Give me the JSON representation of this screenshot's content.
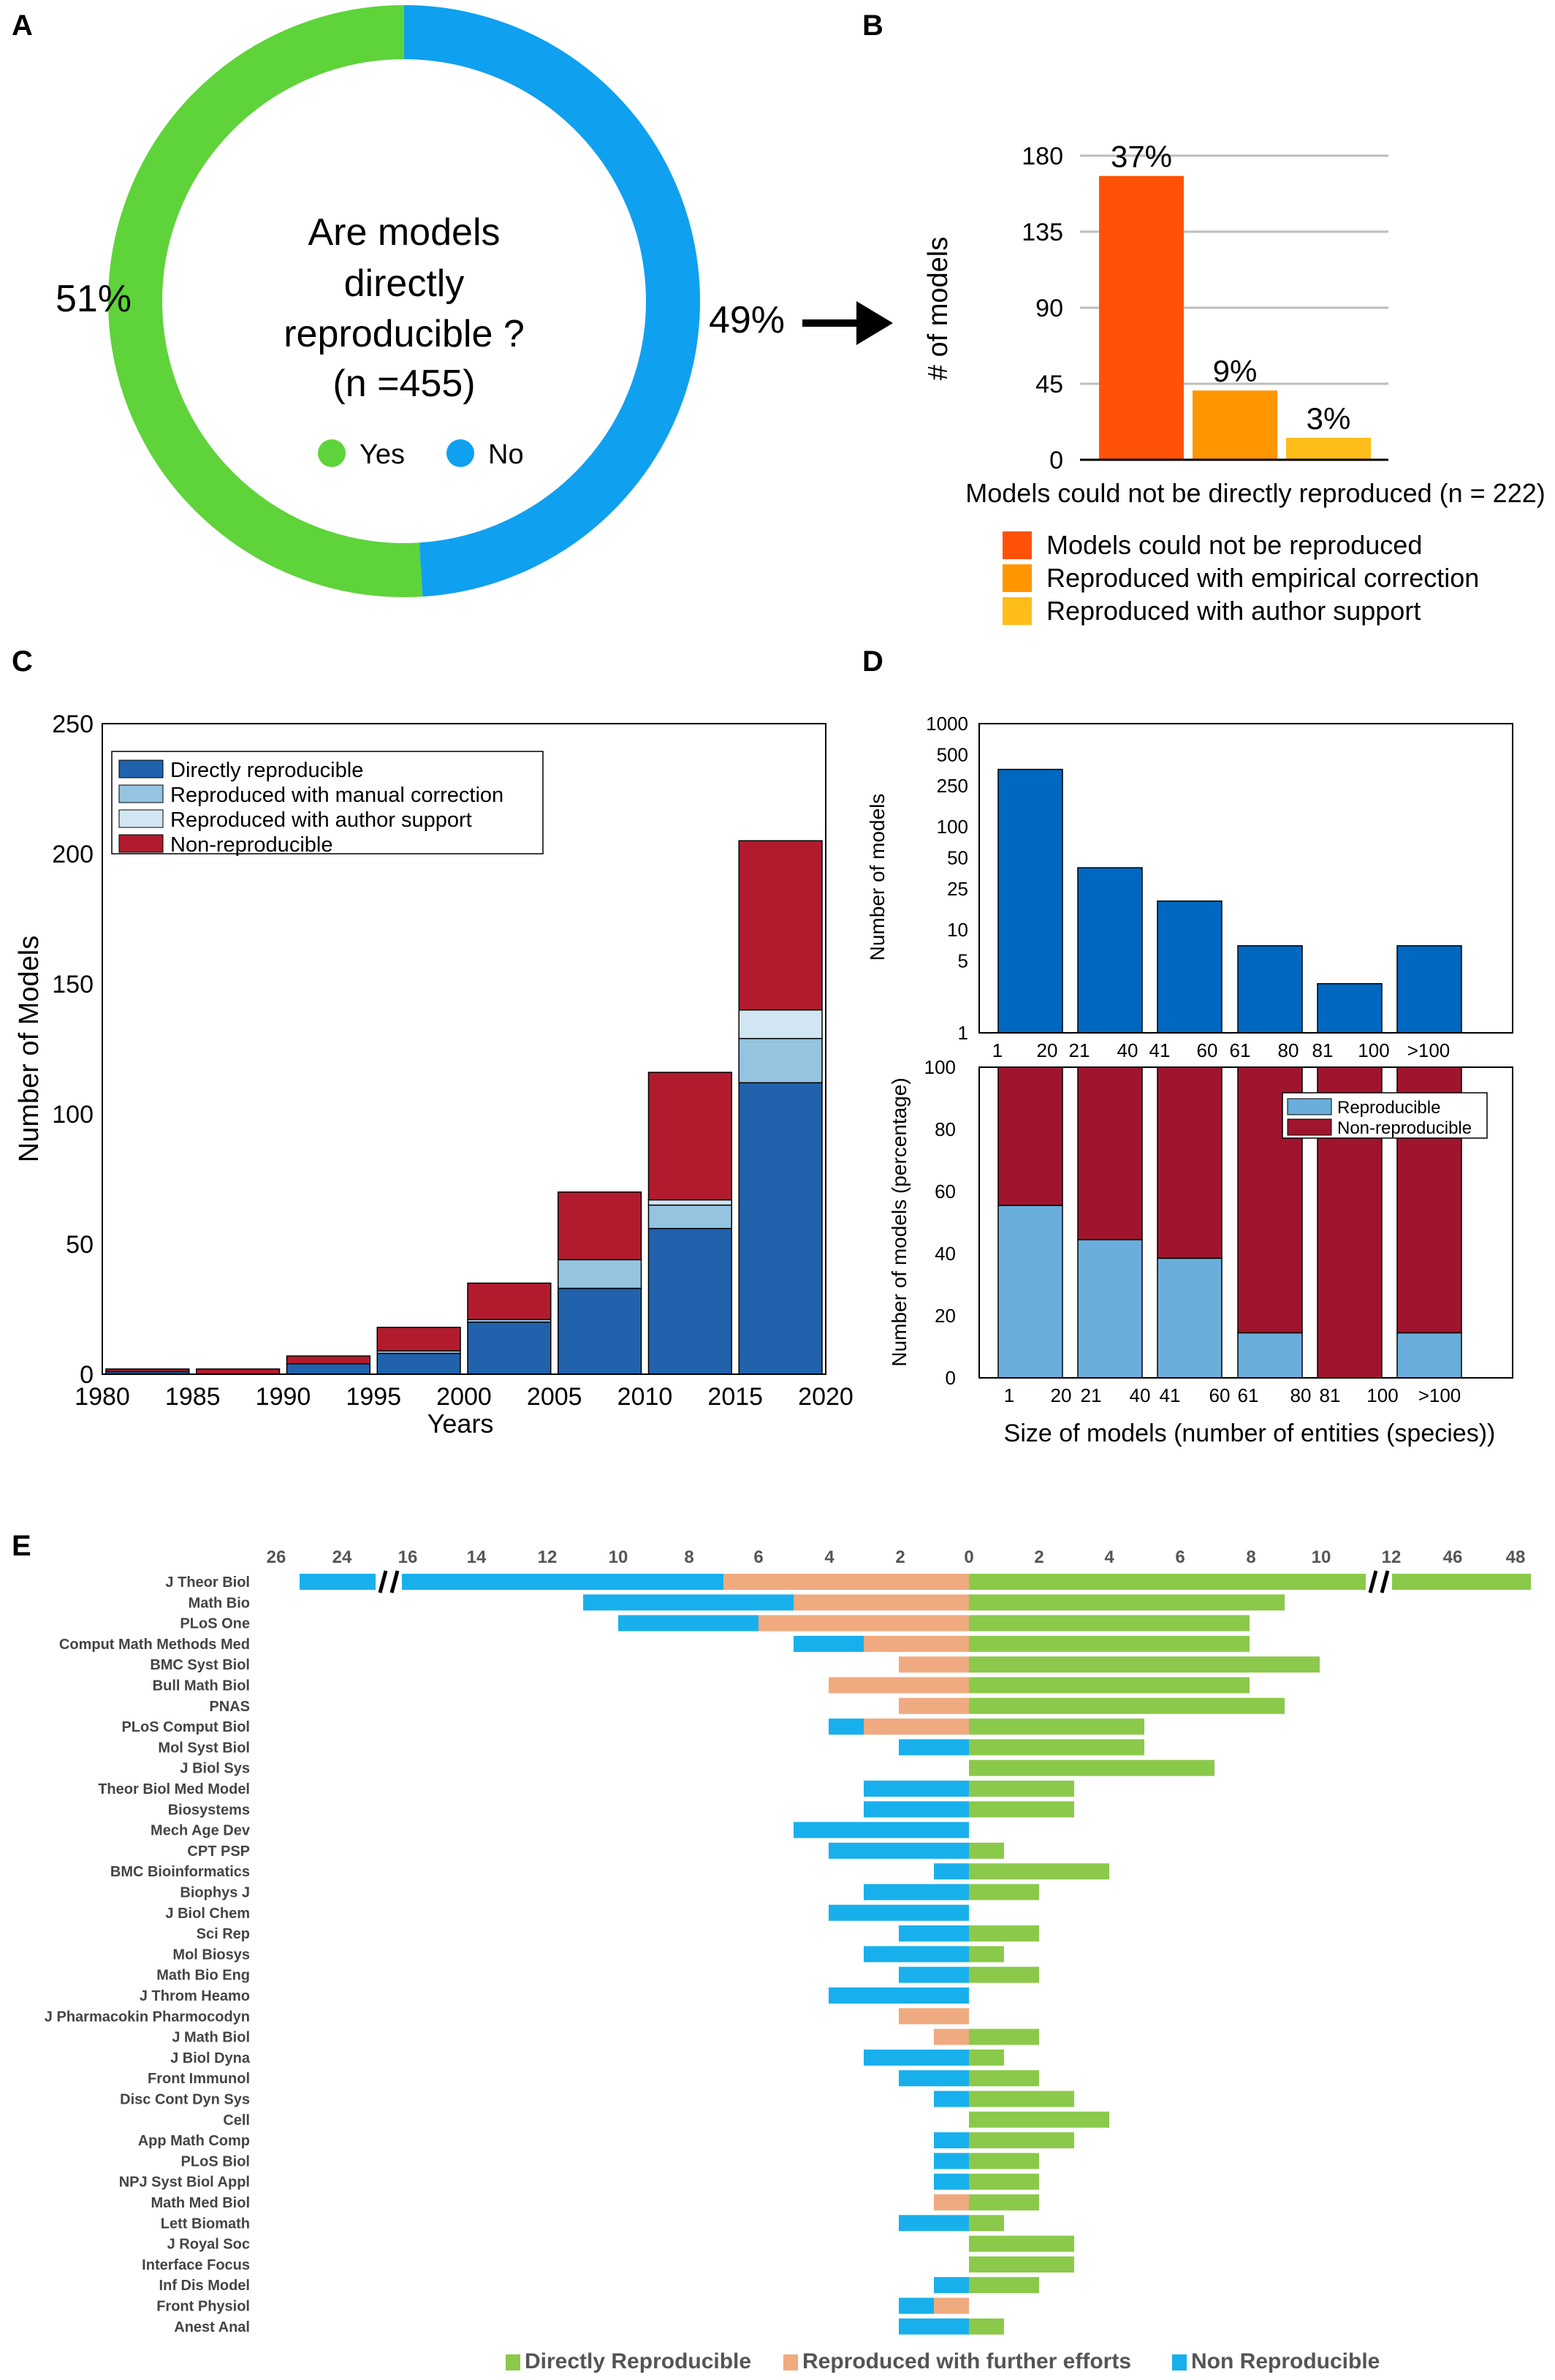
{
  "panel_letters": [
    "A",
    "B",
    "C",
    "D",
    "E"
  ],
  "colors": {
    "yes": "#5fd33a",
    "no": "#0fa0f0",
    "b_bars": [
      "#ff5208",
      "#ff9600",
      "#ffbd1a"
    ],
    "c_series": [
      "#2162ad",
      "#94c4e0",
      "#d2e5f2",
      "#b21b2e"
    ],
    "d_top": "#0068c0",
    "d_rep": "#69aedb",
    "d_nonrep": "#a0152d",
    "e_green": "#8bc94a",
    "e_orange": "#f0aa80",
    "e_blue": "#18b0ec",
    "grid": "#bdbdbd"
  },
  "chart_data": [
    {
      "panel": "A",
      "type": "pie",
      "title_lines": [
        "Are models",
        "directly",
        "reproducible ?",
        "(n =455)"
      ],
      "slices": [
        {
          "label": "Yes",
          "value": 51,
          "display": "51%"
        },
        {
          "label": "No",
          "value": 49,
          "display": "49%"
        }
      ]
    },
    {
      "panel": "B",
      "type": "bar",
      "ylabel": "# of models",
      "xlabel": "Models could not be directly reproduced (n = 222)",
      "ylim": [
        0,
        180
      ],
      "yticks": [
        0,
        45,
        90,
        135,
        180
      ],
      "grid": true,
      "categories": [
        "Models could not be reproduced",
        "Reproduced with empirical correction",
        "Reproduced with author support"
      ],
      "values": [
        168,
        41,
        13
      ],
      "data_labels": [
        "37%",
        "9%",
        "3%"
      ],
      "legend": [
        "Models could not be reproduced",
        "Reproduced with empirical correction",
        "Reproduced with author support"
      ],
      "legend_position": "below"
    },
    {
      "panel": "C",
      "type": "bar",
      "stacked": true,
      "xlabel": "Years",
      "ylabel": "Number of Models",
      "xlim": [
        1980,
        2020
      ],
      "ylim": [
        0,
        250
      ],
      "xticks": [
        "1980",
        "1985",
        "1990",
        "1995",
        "2000",
        "2005",
        "2010",
        "2015",
        "2020"
      ],
      "yticks": [
        "0",
        "50",
        "100",
        "150",
        "200",
        "250"
      ],
      "bin_edges": [
        1980,
        1985,
        1990,
        1995,
        2000,
        2005,
        2010,
        2015,
        2020
      ],
      "legend_position": "top-left",
      "series": [
        {
          "name": "Directly reproducible",
          "values": [
            1,
            0,
            4,
            8,
            20,
            33,
            56,
            112
          ]
        },
        {
          "name": "Reproduced with manual correction",
          "values": [
            0,
            0,
            0,
            1,
            1,
            11,
            9,
            17
          ]
        },
        {
          "name": "Reproduced with author support",
          "values": [
            0,
            0,
            0,
            0,
            0,
            0,
            2,
            11
          ]
        },
        {
          "name": "Non-reproducible",
          "values": [
            1,
            2,
            3,
            9,
            14,
            26,
            49,
            65
          ]
        }
      ]
    },
    {
      "panel": "D-top",
      "type": "bar",
      "ylabel": "Number of models",
      "yscale": "log",
      "ylim": [
        1,
        1000
      ],
      "yticks": [
        "1",
        "5",
        "10",
        "25",
        "50",
        "100",
        "250",
        "500",
        "1000"
      ],
      "categories": [
        "1 - 20",
        "21 - 40",
        "41 - 60",
        "61 - 80",
        "81 - 100",
        ">100"
      ],
      "values": [
        360,
        40,
        19,
        7,
        3,
        7
      ]
    },
    {
      "panel": "D-bottom",
      "type": "bar",
      "stacked": true,
      "ylabel": "Number of models (percentage)",
      "xlabel": "Size of models (number of entities (species))",
      "ylim": [
        0,
        100
      ],
      "yticks": [
        "0",
        "20",
        "40",
        "60",
        "80",
        "100"
      ],
      "categories": [
        "1 - 20",
        "21 - 40",
        "41 - 60",
        "61 - 80",
        "81 - 100",
        ">100"
      ],
      "tick_labels": [
        "1",
        "20",
        "21",
        "40",
        "41",
        "60",
        "61",
        "80",
        "81",
        "100",
        ">100"
      ],
      "legend_position": "top-right",
      "series": [
        {
          "name": "Reproducible",
          "values": [
            55.5,
            44.5,
            38.5,
            14.5,
            0,
            14.5
          ]
        },
        {
          "name": "Non-reproducible",
          "values": [
            44.5,
            55.5,
            61.5,
            85.5,
            100,
            85.5
          ]
        }
      ]
    },
    {
      "panel": "E",
      "type": "bar",
      "orientation": "horizontal",
      "axis_ticks_left": [
        "26",
        "24",
        "16",
        "14",
        "12",
        "10",
        "8",
        "6",
        "4",
        "2",
        "0"
      ],
      "axis_ticks_right": [
        "2",
        "4",
        "6",
        "8",
        "10",
        "12",
        "46",
        "48"
      ],
      "axis_break": true,
      "legend": [
        "Directly Reproducible",
        "Reproduced with further efforts",
        "Non Reproducible"
      ],
      "legend_position": "bottom",
      "rows": [
        {
          "journal": "J Theor Biol",
          "non_reproducible": 26,
          "further_efforts": 7,
          "directly": 48
        },
        {
          "journal": "Math Bio",
          "non_reproducible": 11,
          "further_efforts": 5,
          "directly": 9
        },
        {
          "journal": "PLoS One",
          "non_reproducible": 10,
          "further_efforts": 6,
          "directly": 8
        },
        {
          "journal": "Comput Math Methods Med",
          "non_reproducible": 5,
          "further_efforts": 3,
          "directly": 8
        },
        {
          "journal": "BMC Syst Biol",
          "non_reproducible": 2,
          "further_efforts": 2,
          "directly": 10
        },
        {
          "journal": "Bull Math Biol",
          "non_reproducible": 1,
          "further_efforts": 4,
          "directly": 8
        },
        {
          "journal": "PNAS",
          "non_reproducible": 1,
          "further_efforts": 2,
          "directly": 9
        },
        {
          "journal": "PLoS Comput Biol",
          "non_reproducible": 4,
          "further_efforts": 3,
          "directly": 5
        },
        {
          "journal": "Mol Syst Biol",
          "non_reproducible": 2,
          "further_efforts": 0,
          "directly": 5
        },
        {
          "journal": "J Biol Sys",
          "non_reproducible": 0,
          "further_efforts": 0,
          "directly": 7
        },
        {
          "journal": "Theor Biol Med Model",
          "non_reproducible": 3,
          "further_efforts": 0,
          "directly": 3
        },
        {
          "journal": "Biosystems",
          "non_reproducible": 3,
          "further_efforts": 0,
          "directly": 3
        },
        {
          "journal": "Mech Age Dev",
          "non_reproducible": 5,
          "further_efforts": 0,
          "directly": 0
        },
        {
          "journal": "CPT PSP",
          "non_reproducible": 4,
          "further_efforts": 0,
          "directly": 1
        },
        {
          "journal": "BMC Bioinformatics",
          "non_reproducible": 1,
          "further_efforts": 0,
          "directly": 4
        },
        {
          "journal": "Biophys J",
          "non_reproducible": 3,
          "further_efforts": 0,
          "directly": 2
        },
        {
          "journal": "J Biol Chem",
          "non_reproducible": 4,
          "further_efforts": 0,
          "directly": 0
        },
        {
          "journal": "Sci Rep",
          "non_reproducible": 2,
          "further_efforts": 0,
          "directly": 2
        },
        {
          "journal": "Mol Biosys",
          "non_reproducible": 3,
          "further_efforts": 0,
          "directly": 1
        },
        {
          "journal": "Math Bio Eng",
          "non_reproducible": 2,
          "further_efforts": 0,
          "directly": 2
        },
        {
          "journal": "J Throm Heamo",
          "non_reproducible": 4,
          "further_efforts": 0,
          "directly": 0
        },
        {
          "journal": "J Pharmacokin Pharmocodyn",
          "non_reproducible": 2,
          "further_efforts": 2,
          "directly": 0
        },
        {
          "journal": "J Math Biol",
          "non_reproducible": 1,
          "further_efforts": 1,
          "directly": 2
        },
        {
          "journal": "J Biol Dyna",
          "non_reproducible": 3,
          "further_efforts": 0,
          "directly": 1
        },
        {
          "journal": "Front Immunol",
          "non_reproducible": 2,
          "further_efforts": 0,
          "directly": 2
        },
        {
          "journal": "Disc Cont Dyn Sys",
          "non_reproducible": 1,
          "further_efforts": 0,
          "directly": 3
        },
        {
          "journal": "Cell",
          "non_reproducible": 0,
          "further_efforts": 0,
          "directly": 4
        },
        {
          "journal": "App Math Comp",
          "non_reproducible": 1,
          "further_efforts": 0,
          "directly": 3
        },
        {
          "journal": "PLoS Biol",
          "non_reproducible": 1,
          "further_efforts": 0,
          "directly": 2
        },
        {
          "journal": "NPJ Syst Biol Appl",
          "non_reproducible": 1,
          "further_efforts": 0,
          "directly": 2
        },
        {
          "journal": "Math Med Biol",
          "non_reproducible": 0,
          "further_efforts": 1,
          "directly": 2
        },
        {
          "journal": "Lett Biomath",
          "non_reproducible": 2,
          "further_efforts": 0,
          "directly": 1
        },
        {
          "journal": "J Royal Soc",
          "non_reproducible": 0,
          "further_efforts": 0,
          "directly": 3
        },
        {
          "journal": "Interface Focus",
          "non_reproducible": 0,
          "further_efforts": 0,
          "directly": 3
        },
        {
          "journal": "Inf Dis Model",
          "non_reproducible": 1,
          "further_efforts": 0,
          "directly": 2
        },
        {
          "journal": "Front Physiol",
          "non_reproducible": 2,
          "further_efforts": 1,
          "directly": 0
        },
        {
          "journal": "Anest Anal",
          "non_reproducible": 2,
          "further_efforts": 0,
          "directly": 1
        }
      ]
    }
  ]
}
